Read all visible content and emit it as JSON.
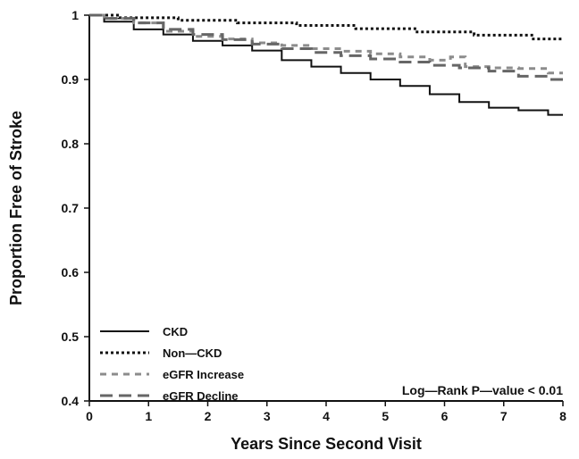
{
  "chart_data": {
    "type": "line",
    "xlabel": "Years Since Second Visit",
    "ylabel": "Proportion Free of Stroke",
    "xlim": [
      0,
      8
    ],
    "ylim": [
      0.4,
      1.0
    ],
    "x_ticks": [
      "0",
      "1",
      "2",
      "3",
      "4",
      "5",
      "6",
      "7",
      "8"
    ],
    "y_ticks": [
      "0.4",
      "0.5",
      "0.6",
      "0.7",
      "0.8",
      "0.9",
      "1"
    ],
    "grid": false,
    "legend_position": "bottom-left",
    "annotation": "Log—Rank P—value < 0.01",
    "series": [
      {
        "name": "CKD",
        "line_style": "solid",
        "color": "#111111",
        "x": [
          0,
          0.5,
          1,
          1.5,
          2,
          2.5,
          3,
          3.5,
          4,
          4.5,
          5,
          5.5,
          6,
          6.5,
          7,
          7.5,
          8
        ],
        "y": [
          1.0,
          0.99,
          0.978,
          0.97,
          0.96,
          0.953,
          0.945,
          0.93,
          0.92,
          0.91,
          0.9,
          0.89,
          0.877,
          0.865,
          0.856,
          0.852,
          0.845
        ]
      },
      {
        "name": "Non—CKD",
        "line_style": "dotted",
        "color": "#111111",
        "x": [
          0,
          1,
          2,
          3,
          4,
          5,
          6,
          7,
          8
        ],
        "y": [
          1.0,
          0.996,
          0.992,
          0.988,
          0.984,
          0.979,
          0.974,
          0.969,
          0.963
        ]
      },
      {
        "name": "eGFR Increase",
        "line_style": "short-dash",
        "color": "#8c8c8c",
        "x": [
          0,
          0.5,
          1,
          1.5,
          2,
          2.5,
          3,
          3.5,
          4,
          4.5,
          5,
          5.5,
          6,
          6.2,
          6.5,
          7,
          7.5,
          8
        ],
        "y": [
          1.0,
          0.995,
          0.988,
          0.975,
          0.967,
          0.963,
          0.957,
          0.953,
          0.948,
          0.944,
          0.94,
          0.935,
          0.93,
          0.935,
          0.92,
          0.918,
          0.917,
          0.91
        ]
      },
      {
        "name": "eGFR Decline",
        "line_style": "long-dash",
        "color": "#666666",
        "x": [
          0,
          0.5,
          1,
          1.5,
          2,
          2.5,
          3,
          3.5,
          4,
          4.5,
          5,
          5.5,
          6,
          6.5,
          7,
          7.5,
          8
        ],
        "y": [
          1.0,
          0.995,
          0.988,
          0.978,
          0.97,
          0.962,
          0.955,
          0.948,
          0.942,
          0.937,
          0.932,
          0.927,
          0.922,
          0.918,
          0.913,
          0.905,
          0.9
        ]
      }
    ]
  }
}
